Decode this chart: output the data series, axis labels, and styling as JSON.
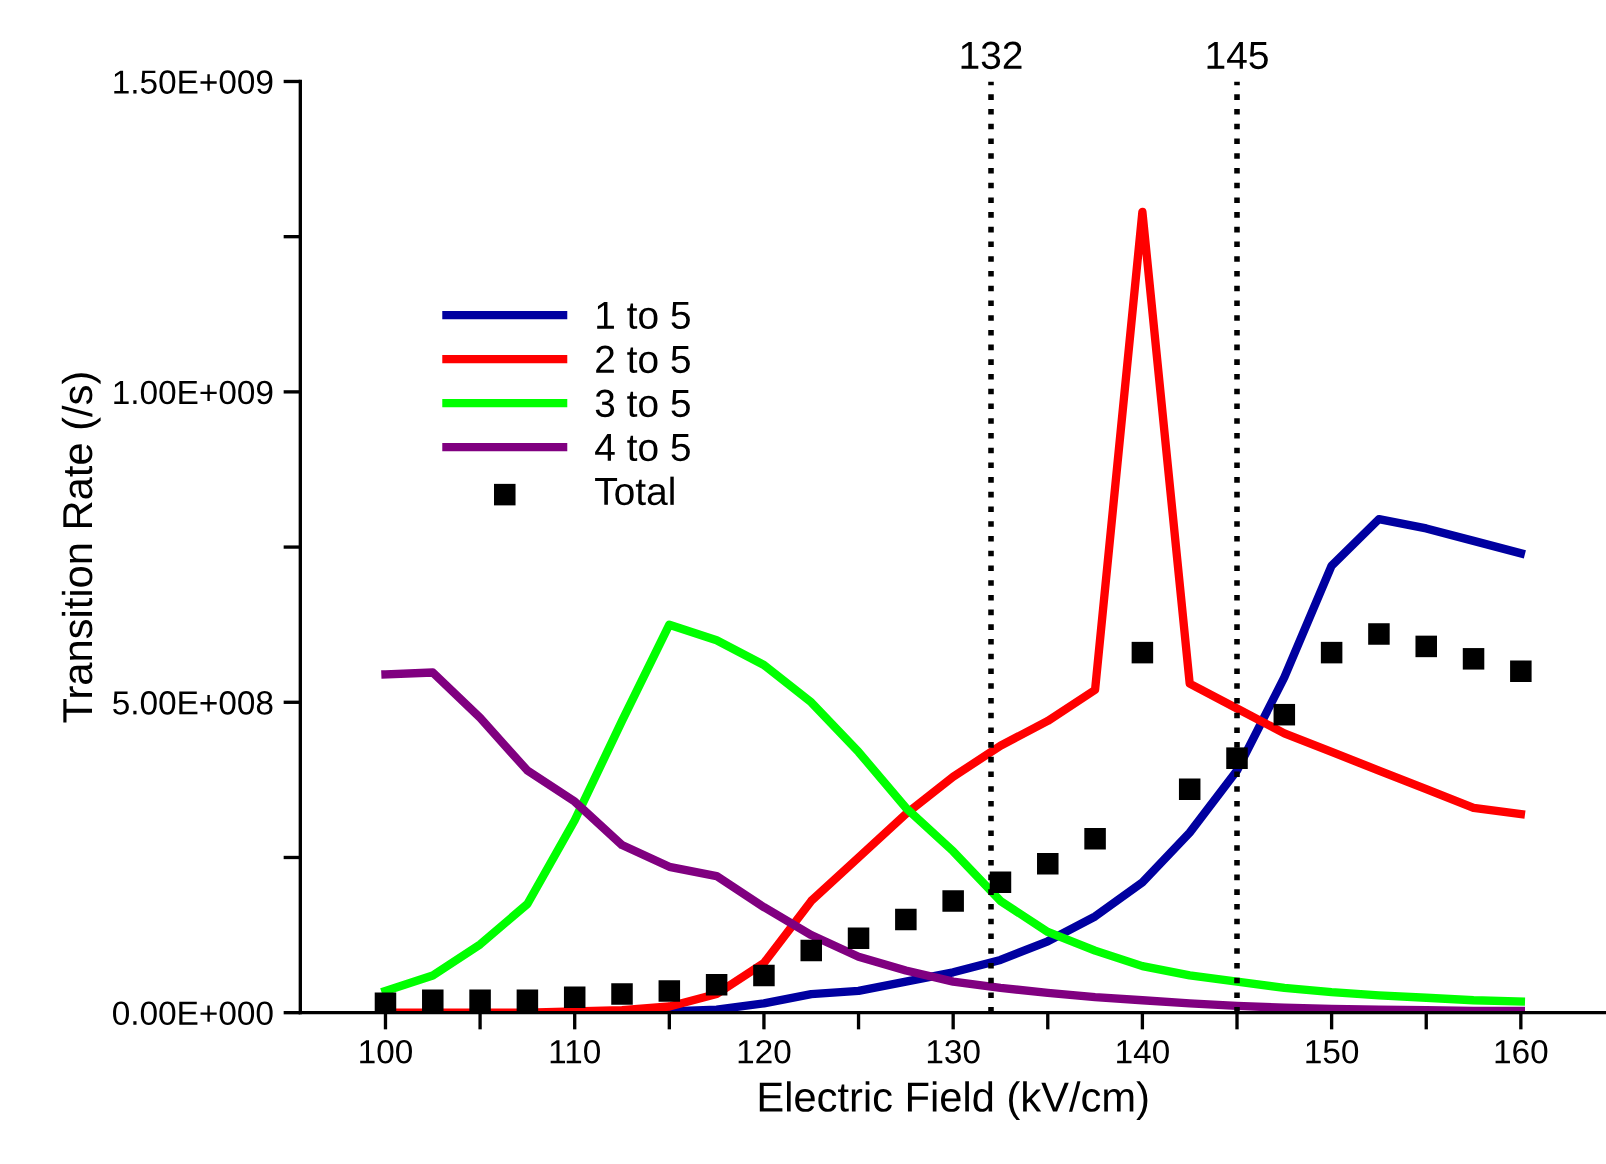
{
  "chart_data": {
    "type": "line",
    "xlabel": "Electric Field (kV/cm)",
    "ylabel": "Transition Rate (/s)",
    "x": [
      100,
      102.5,
      105,
      107.5,
      110,
      112.5,
      115,
      117.5,
      120,
      122.5,
      125,
      127.5,
      130,
      132.5,
      135,
      137.5,
      140,
      142.5,
      145,
      147.5,
      150,
      152.5,
      155,
      157.5,
      160
    ],
    "series": [
      {
        "name": "1 to 5",
        "color": "#0000a0",
        "values": [
          null,
          null,
          null,
          null,
          null,
          0,
          2000000.0,
          5000000.0,
          15000000.0,
          30000000.0,
          35000000.0,
          50000000.0,
          65000000.0,
          85000000.0,
          115000000.0,
          155000000.0,
          210000000.0,
          290000000.0,
          390000000.0,
          540000000.0,
          720000000.0,
          795000000.0,
          780000000.0,
          760000000.0,
          740000000.0
        ]
      },
      {
        "name": "2 to 5",
        "color": "#ff0000",
        "values": [
          0,
          0,
          0,
          0,
          2000000.0,
          4000000.0,
          10000000.0,
          30000000.0,
          80000000.0,
          180000000.0,
          250000000.0,
          320000000.0,
          380000000.0,
          430000000.0,
          470000000.0,
          520000000.0,
          1290000000.0,
          530000000.0,
          490000000.0,
          450000000.0,
          420000000.0,
          390000000.0,
          360000000.0,
          330000000.0,
          320000000.0
        ]
      },
      {
        "name": "3 to 5",
        "color": "#00ff00",
        "values": [
          35000000.0,
          60000000.0,
          110000000.0,
          175000000.0,
          310000000.0,
          470000000.0,
          625000000.0,
          600000000.0,
          560000000.0,
          500000000.0,
          420000000.0,
          330000000.0,
          260000000.0,
          180000000.0,
          130000000.0,
          100000000.0,
          75000000.0,
          60000000.0,
          50000000.0,
          40000000.0,
          33000000.0,
          28000000.0,
          24000000.0,
          20000000.0,
          18000000.0
        ]
      },
      {
        "name": "4 to 5",
        "color": "#800080",
        "values": [
          545000000.0,
          548000000.0,
          475000000.0,
          390000000.0,
          340000000.0,
          270000000.0,
          235000000.0,
          220000000.0,
          170000000.0,
          125000000.0,
          90000000.0,
          68000000.0,
          50000000.0,
          40000000.0,
          32000000.0,
          25000000.0,
          20000000.0,
          15000000.0,
          11000000.0,
          8000000.0,
          6000000.0,
          5000000.0,
          4000000.0,
          3000000.0,
          3000000.0
        ]
      },
      {
        "name": "Total",
        "type": "scatter",
        "marker": "square",
        "color": "#000000",
        "values": [
          15000000.0,
          20000000.0,
          20000000.0,
          20000000.0,
          25000000.0,
          30000000.0,
          35000000.0,
          45000000.0,
          60000000.0,
          100000000.0,
          120000000.0,
          150000000.0,
          180000000.0,
          210000000.0,
          240000000.0,
          280000000.0,
          580000000.0,
          360000000.0,
          410000000.0,
          480000000.0,
          580000000.0,
          610000000.0,
          590000000.0,
          570000000.0,
          550000000.0
        ]
      }
    ],
    "xlim": [
      95.5,
      164.5
    ],
    "xticks": [
      100,
      {
        "value": 105,
        "label": null
      },
      110,
      {
        "value": 115,
        "label": null
      },
      120,
      {
        "value": 125,
        "label": null
      },
      130,
      {
        "value": 135,
        "label": null
      },
      140,
      {
        "value": 145,
        "label": null
      },
      150,
      {
        "value": 155,
        "label": null
      },
      160
    ],
    "ylim": [
      0,
      1500000000.0
    ],
    "yticks": [
      {
        "value": 0,
        "label": "0.00E+000"
      },
      {
        "value": 250000000.0,
        "label": null
      },
      {
        "value": 500000000.0,
        "label": "5.00E+008"
      },
      {
        "value": 750000000.0,
        "label": null
      },
      {
        "value": 1000000000.0,
        "label": "1.00E+009"
      },
      {
        "value": 1250000000.0,
        "label": null
      },
      {
        "value": 1500000000.0,
        "label": "1.50E+009"
      }
    ],
    "ref_lines": [
      {
        "axis": "x",
        "value": 132,
        "label": "132",
        "color": "#000000",
        "line_style": "dotted"
      },
      {
        "axis": "x",
        "value": 145,
        "label": "145",
        "color": "#000000",
        "line_style": "dotted"
      }
    ],
    "legend": "top left",
    "grid": false,
    "line_style": "solid",
    "marker": "none"
  }
}
